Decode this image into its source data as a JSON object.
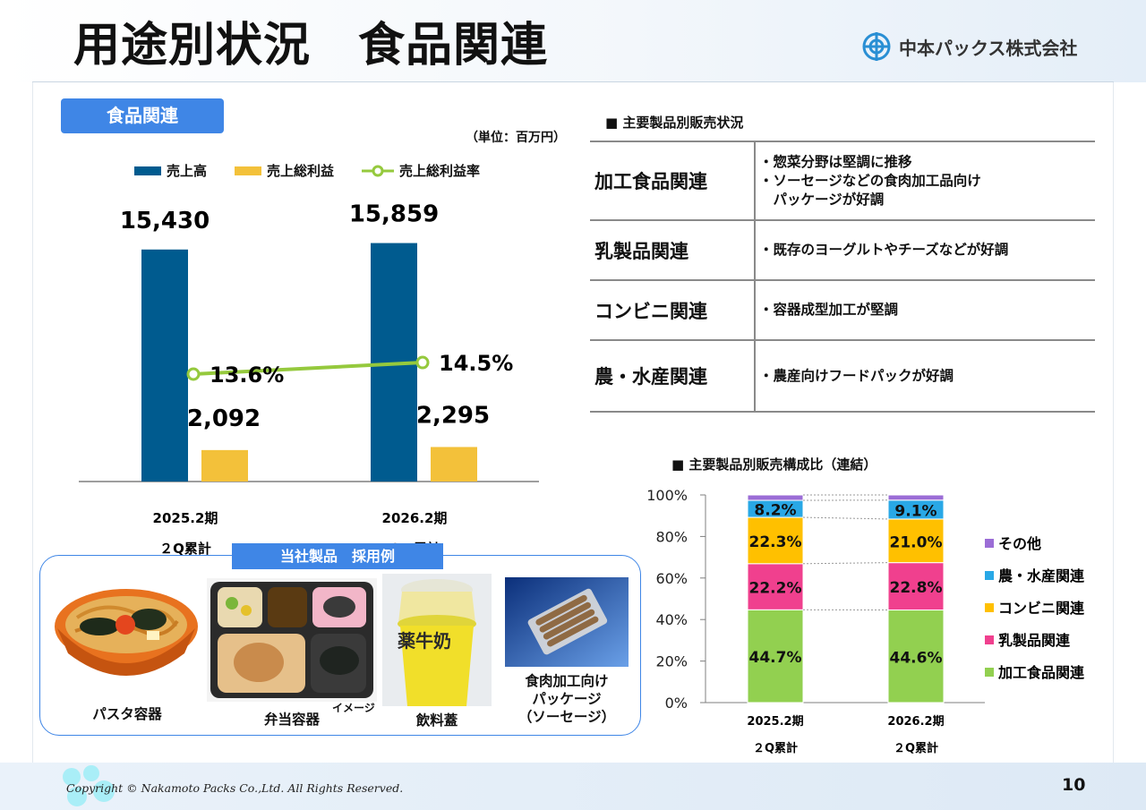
{
  "header": {
    "title": "用途別状況　食品関連",
    "logo_name": "中本パックス株式会社",
    "logo_icon": "company-logo-icon"
  },
  "left_panel": {
    "badge": "食品関連",
    "unit": "（単位：百万円）",
    "legend": {
      "sales": "売上高",
      "gross_profit": "売上総利益",
      "margin": "売上総利益率"
    }
  },
  "colors": {
    "sales": "#005b8f",
    "gross_profit": "#f3c13a",
    "margin": "#95c93d",
    "accent": "#3f86e6",
    "processed_food": "#92d050",
    "dairy": "#f0408e",
    "convenience": "#ffc000",
    "agri_fish": "#29a8e6",
    "other": "#9b6dd6"
  },
  "chart_data": [
    {
      "type": "bar",
      "categories": [
        [
          "2025.2期",
          "２Q累計"
        ],
        [
          "2026.2期",
          "２Q累計"
        ]
      ],
      "series": [
        {
          "name": "売上高",
          "values": [
            15430,
            15859
          ],
          "labels": [
            "15,430",
            "15,859"
          ]
        },
        {
          "name": "売上総利益",
          "values": [
            2092,
            2295
          ],
          "labels": [
            "2,092",
            "2,295"
          ]
        },
        {
          "name": "売上総利益率",
          "type": "line",
          "values": [
            13.6,
            14.5
          ],
          "labels": [
            "13.6%",
            "14.5%"
          ]
        }
      ],
      "legend_position": "top"
    },
    {
      "type": "bar",
      "stacked": true,
      "title": "■ 主要製品別販売構成比（連結）",
      "categories": [
        [
          "2025.2期",
          "２Q累計"
        ],
        [
          "2026.2期",
          "２Q累計"
        ]
      ],
      "y_ticks": [
        "0%",
        "20%",
        "40%",
        "60%",
        "80%",
        "100%"
      ],
      "ylim": [
        0,
        100
      ],
      "series": [
        {
          "name": "加工食品関連",
          "values": [
            44.7,
            44.6
          ],
          "labels": [
            "44.7%",
            "44.6%"
          ]
        },
        {
          "name": "乳製品関連",
          "values": [
            22.2,
            22.8
          ],
          "labels": [
            "22.2%",
            "22.8%"
          ]
        },
        {
          "name": "コンビニ関連",
          "values": [
            22.3,
            21.0
          ],
          "labels": [
            "22.3%",
            "21.0%"
          ]
        },
        {
          "name": "農・水産関連",
          "values": [
            8.2,
            9.1
          ],
          "labels": [
            "8.2%",
            "9.1%"
          ]
        },
        {
          "name": "その他",
          "values": [
            2.6,
            2.5
          ],
          "labels": [
            "",
            ""
          ]
        }
      ],
      "legend_order": [
        "その他",
        "農・水産関連",
        "コンビニ関連",
        "乳製品関連",
        "加工食品関連"
      ],
      "legend_position": "right"
    }
  ],
  "sales_table": {
    "title": "■ 主要製品別販売状況",
    "rows": [
      {
        "category": "加工食品関連",
        "lines": [
          "・惣菜分野は堅調に推移",
          "・ソーセージなどの食肉加工品向け",
          "　パッケージが好調"
        ]
      },
      {
        "category": "乳製品関連",
        "lines": [
          "・既存のヨーグルトやチーズなどが好調"
        ]
      },
      {
        "category": "コンビニ関連",
        "lines": [
          "・容器成型加工が堅調"
        ]
      },
      {
        "category": "農・水産関連",
        "lines": [
          "・農産向けフードパックが好調"
        ]
      }
    ]
  },
  "examples": {
    "badge": "当社製品　採用例",
    "captions": {
      "pasta": "パスタ容器",
      "bento": "弁当容器",
      "image_note": "イメージ",
      "drink": "飲料蓋",
      "meat": "食肉加工向け\nパッケージ\n（ソーセージ）"
    },
    "drink_label": "薬牛奶"
  },
  "footer": {
    "copyright": "Copyright © Nakamoto Packs Co.,Ltd. All Rights Reserved.",
    "page": "10"
  }
}
